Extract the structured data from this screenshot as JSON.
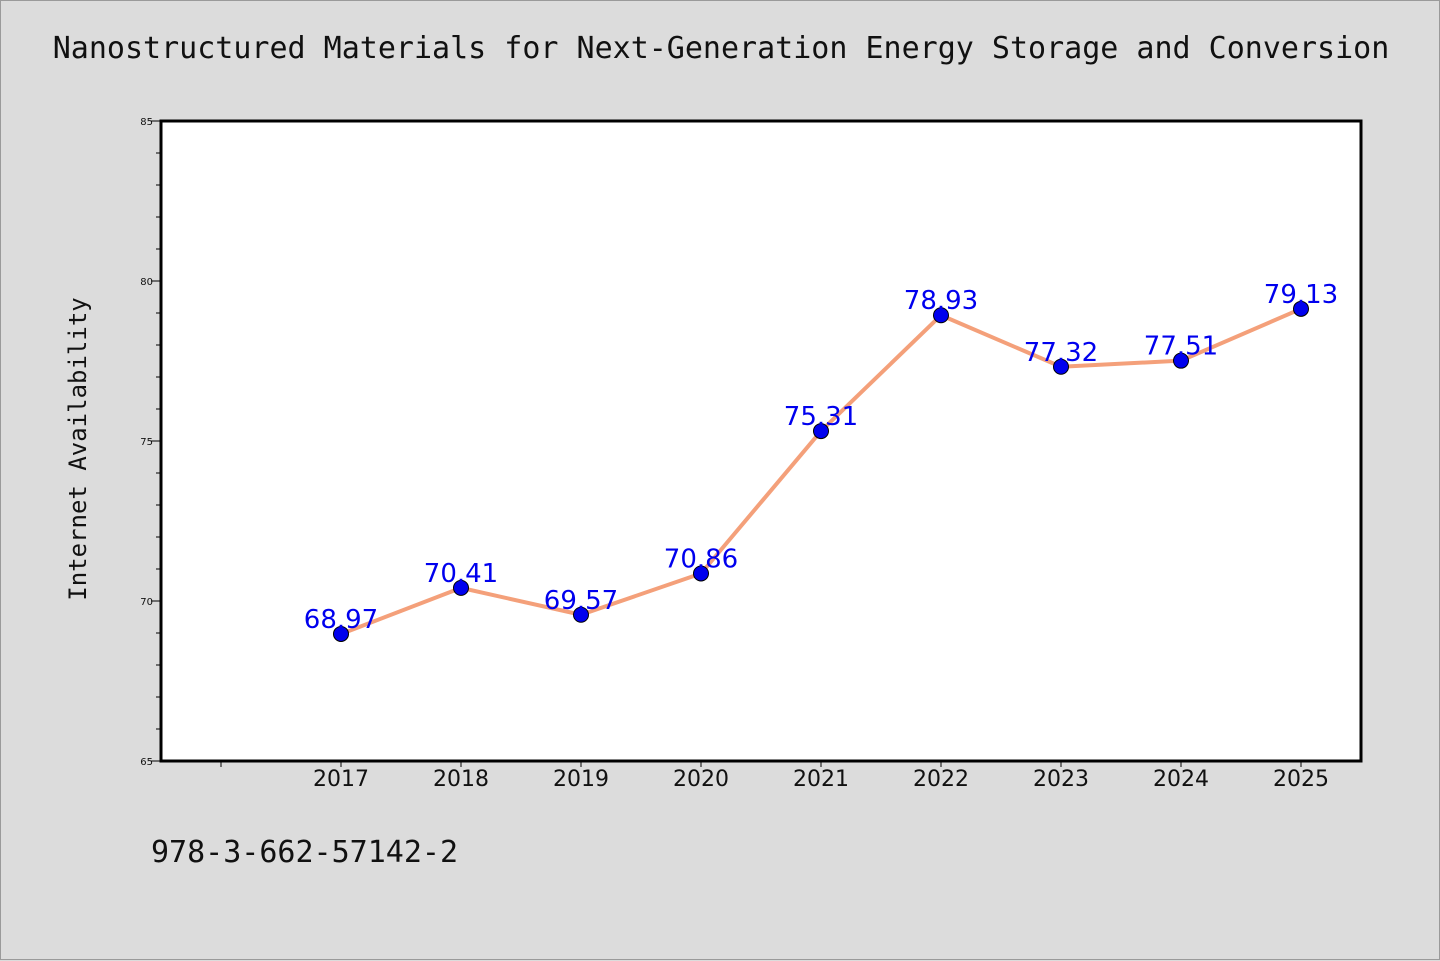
{
  "chart_data": {
    "type": "line",
    "title": "Nanostructured Materials for Next-Generation Energy Storage and Conversion",
    "xlabel": "",
    "ylabel": "Internet Availability",
    "categories": [
      "2017",
      "2018",
      "2019",
      "2020",
      "2021",
      "2022",
      "2023",
      "2024",
      "2025"
    ],
    "series": [
      {
        "values": [
          68.97,
          70.41,
          69.57,
          70.86,
          75.31,
          78.93,
          77.32,
          77.51,
          79.13
        ],
        "data_labels": [
          "68.97",
          "70.41",
          "69.57",
          "70.86",
          "75.31",
          "78.93",
          "77.32",
          "77.51",
          "79.13"
        ]
      }
    ],
    "ylim": [
      65,
      85
    ],
    "y_ticks": [
      "65",
      "70",
      "75",
      "80",
      "85"
    ],
    "grid": false,
    "legend": "none",
    "colors": {
      "line": "#f4a07a",
      "marker": "#0000ee",
      "label": "#0000ee",
      "plot_background": "#ffffff",
      "figure_background": "#dcdcdc"
    }
  },
  "caption": "978-3-662-57142-2"
}
